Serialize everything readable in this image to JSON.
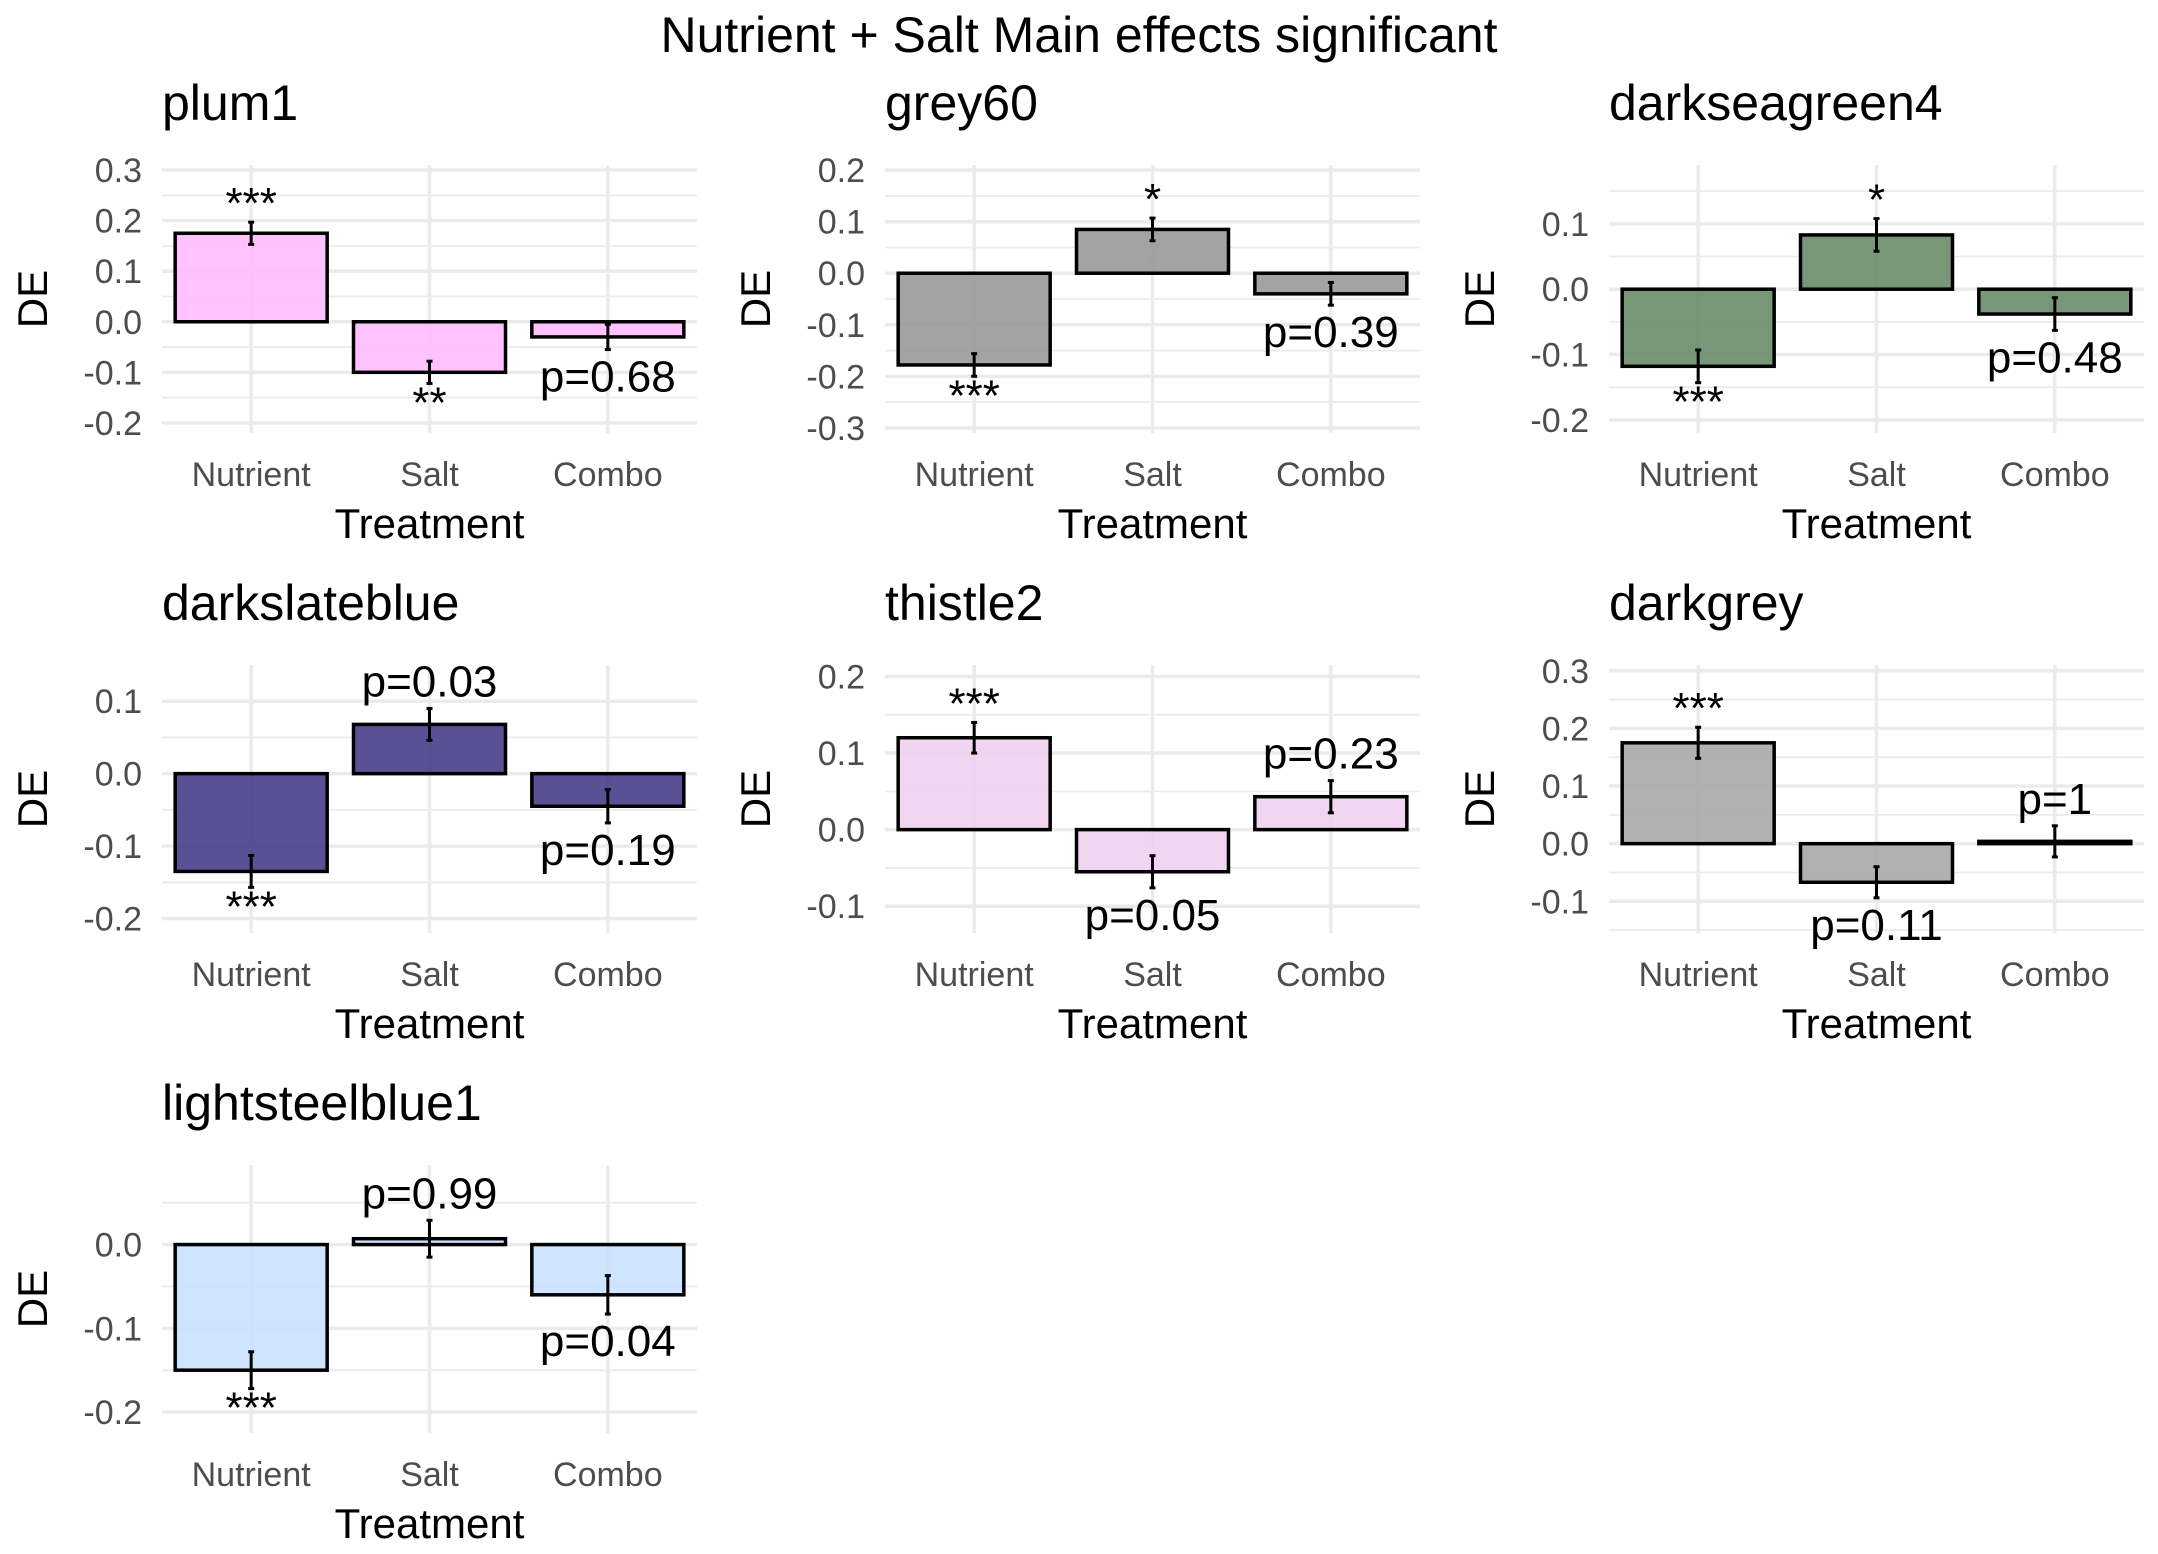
{
  "figure_title": "Nutrient + Salt Main effects significant",
  "chart_data": [
    {
      "type": "bar",
      "title": "plum1",
      "fill": "#ffbbff",
      "categories": [
        "Nutrient",
        "Salt",
        "Combo"
      ],
      "values": [
        0.175,
        -0.1,
        -0.03
      ],
      "errors": [
        0.022,
        0.022,
        0.025
      ],
      "annotations": [
        "***",
        "**",
        "p=0.68"
      ],
      "xlabel": "Treatment",
      "ylabel": "DE",
      "ylim": [
        -0.22,
        0.31
      ],
      "yticks": [
        -0.2,
        -0.1,
        0.0,
        0.1,
        0.2,
        0.3
      ],
      "ytick_labels": [
        "-0.2",
        "-0.1",
        "0.0",
        "0.1",
        "0.2",
        "0.3"
      ]
    },
    {
      "type": "bar",
      "title": "grey60",
      "fill": "#999999",
      "categories": [
        "Nutrient",
        "Salt",
        "Combo"
      ],
      "values": [
        -0.178,
        0.085,
        -0.04
      ],
      "errors": [
        0.022,
        0.022,
        0.022
      ],
      "annotations": [
        "***",
        "*",
        "p=0.39"
      ],
      "xlabel": "Treatment",
      "ylabel": "DE",
      "ylim": [
        -0.31,
        0.21
      ],
      "yticks": [
        -0.3,
        -0.2,
        -0.1,
        0.0,
        0.1,
        0.2
      ],
      "ytick_labels": [
        "-0.3",
        "-0.2",
        "-0.1",
        "0.0",
        "0.1",
        "0.2"
      ]
    },
    {
      "type": "bar",
      "title": "darkseagreen4",
      "fill": "#698b69",
      "categories": [
        "Nutrient",
        "Salt",
        "Combo"
      ],
      "values": [
        -0.118,
        0.083,
        -0.038
      ],
      "errors": [
        0.025,
        0.025,
        0.025
      ],
      "annotations": [
        "***",
        "*",
        "p=0.48"
      ],
      "xlabel": "Treatment",
      "ylabel": "DE",
      "ylim": [
        -0.22,
        0.19
      ],
      "yticks": [
        -0.2,
        -0.1,
        0.0,
        0.1
      ],
      "ytick_labels": [
        "-0.2",
        "-0.1",
        "0.0",
        "0.1"
      ]
    },
    {
      "type": "bar",
      "title": "darkslateblue",
      "fill": "#483d8b",
      "categories": [
        "Nutrient",
        "Salt",
        "Combo"
      ],
      "values": [
        -0.135,
        0.068,
        -0.045
      ],
      "errors": [
        0.022,
        0.022,
        0.023
      ],
      "annotations": [
        "***",
        "p=0.03",
        "p=0.19"
      ],
      "xlabel": "Treatment",
      "ylabel": "DE",
      "ylim": [
        -0.22,
        0.15
      ],
      "yticks": [
        -0.2,
        -0.1,
        0.0,
        0.1
      ],
      "ytick_labels": [
        "-0.2",
        "-0.1",
        "0.0",
        "0.1"
      ]
    },
    {
      "type": "bar",
      "title": "thistle2",
      "fill": "#eed2ee",
      "categories": [
        "Nutrient",
        "Salt",
        "Combo"
      ],
      "values": [
        0.12,
        -0.055,
        0.043
      ],
      "errors": [
        0.02,
        0.021,
        0.021
      ],
      "annotations": [
        "***",
        "p=0.05",
        "p=0.23"
      ],
      "xlabel": "Treatment",
      "ylabel": "DE",
      "ylim": [
        -0.135,
        0.215
      ],
      "yticks": [
        -0.1,
        0.0,
        0.1,
        0.2
      ],
      "ytick_labels": [
        "-0.1",
        "0.0",
        "0.1",
        "0.2"
      ]
    },
    {
      "type": "bar",
      "title": "darkgrey",
      "fill": "#a9a9a9",
      "categories": [
        "Nutrient",
        "Salt",
        "Combo"
      ],
      "values": [
        0.175,
        -0.067,
        0.004
      ],
      "errors": [
        0.027,
        0.027,
        0.027
      ],
      "annotations": [
        "***",
        "p=0.11",
        "p=1"
      ],
      "xlabel": "Treatment",
      "ylabel": "DE",
      "ylim": [
        -0.155,
        0.31
      ],
      "yticks": [
        -0.1,
        0.0,
        0.1,
        0.2,
        0.3
      ],
      "ytick_labels": [
        "-0.1",
        "0.0",
        "0.1",
        "0.2",
        "0.3"
      ]
    },
    {
      "type": "bar",
      "title": "lightsteelblue1",
      "fill": "#cae1ff",
      "categories": [
        "Nutrient",
        "Salt",
        "Combo"
      ],
      "values": [
        -0.15,
        0.007,
        -0.06
      ],
      "errors": [
        0.022,
        0.022,
        0.023
      ],
      "annotations": [
        "***",
        "p=0.99",
        "p=0.04"
      ],
      "xlabel": "Treatment",
      "ylabel": "DE",
      "ylim": [
        -0.225,
        0.095
      ],
      "yticks": [
        -0.2,
        -0.1,
        0.0
      ],
      "ytick_labels": [
        "-0.2",
        "-0.1",
        "0.0"
      ]
    }
  ]
}
